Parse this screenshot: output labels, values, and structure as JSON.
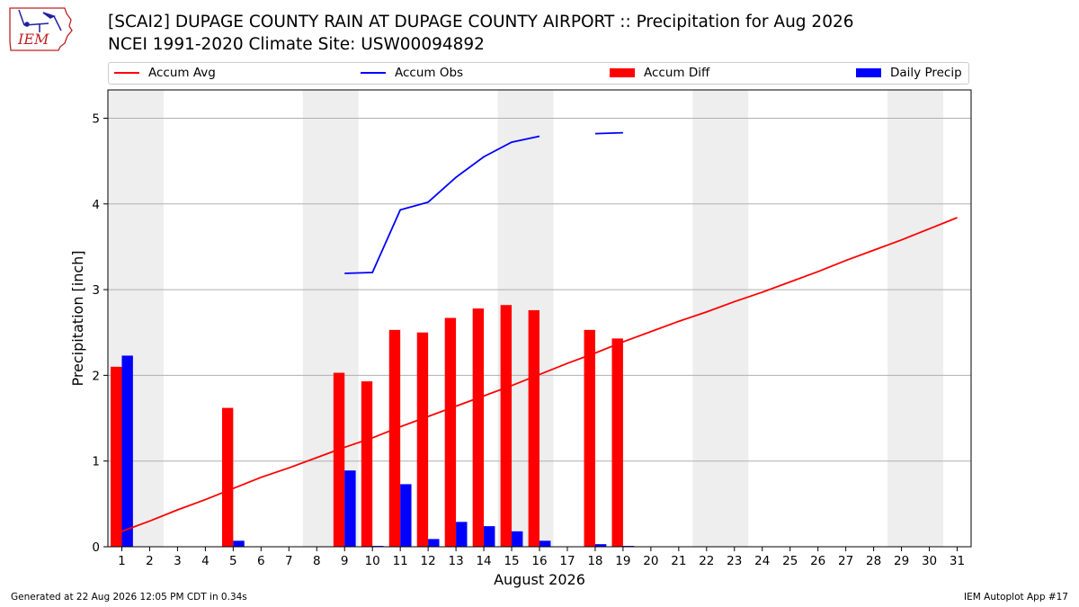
{
  "logo": {
    "text": "IEM",
    "icon": "iowa-state-outline-with-weather-instruments"
  },
  "title_line1": "[SCAI2] DUPAGE COUNTY RAIN AT DUPAGE COUNTY AIRPORT :: Precipitation for Aug 2026",
  "title_line2": "NCEI 1991-2020 Climate Site: USW00094892",
  "legend": [
    {
      "label": "Accum Avg",
      "kind": "line",
      "color": "#ff0000"
    },
    {
      "label": "Accum Obs",
      "kind": "line",
      "color": "#0000ff"
    },
    {
      "label": "Accum Diff",
      "kind": "box",
      "color": "#ff0000"
    },
    {
      "label": "Daily Precip",
      "kind": "box",
      "color": "#0000ff"
    }
  ],
  "footer_left": "Generated at 22 Aug 2026 12:05 PM CDT in 0.34s",
  "footer_right": "IEM Autoplot App #17",
  "chart_data": {
    "type": "bar",
    "xlabel": "August 2026",
    "ylabel": "Precipitation [inch]",
    "xlim": [
      0.5,
      31.5
    ],
    "ylim": [
      0,
      5.33
    ],
    "yticks": [
      0,
      1,
      2,
      3,
      4,
      5
    ],
    "xticks": [
      1,
      2,
      3,
      4,
      5,
      6,
      7,
      8,
      9,
      10,
      11,
      12,
      13,
      14,
      15,
      16,
      17,
      18,
      19,
      20,
      21,
      22,
      23,
      24,
      25,
      26,
      27,
      28,
      29,
      30,
      31
    ],
    "grid_y": true,
    "legend_position": "top",
    "weekend_shading": [
      [
        0.5,
        2.5
      ],
      [
        7.5,
        9.5
      ],
      [
        14.5,
        16.5
      ],
      [
        21.5,
        23.5
      ],
      [
        28.5,
        30.5
      ]
    ],
    "weekend_color": "#eeeeee",
    "accum_avg": {
      "name": "Accum Avg",
      "color": "#ff0000",
      "x": [
        1,
        2,
        3,
        4,
        5,
        6,
        7,
        8,
        9,
        10,
        11,
        12,
        13,
        14,
        15,
        16,
        17,
        18,
        19,
        20,
        21,
        22,
        23,
        24,
        25,
        26,
        27,
        28,
        29,
        30,
        31
      ],
      "y": [
        0.18,
        0.3,
        0.43,
        0.55,
        0.68,
        0.81,
        0.92,
        1.04,
        1.16,
        1.27,
        1.4,
        1.52,
        1.64,
        1.76,
        1.88,
        2.01,
        2.14,
        2.26,
        2.39,
        2.51,
        2.63,
        2.74,
        2.86,
        2.97,
        3.09,
        3.21,
        3.34,
        3.46,
        3.58,
        3.71,
        3.84
      ]
    },
    "accum_obs": {
      "name": "Accum Obs",
      "color": "#0000ff",
      "segments": [
        {
          "x": [
            9,
            10,
            11,
            12,
            13,
            14,
            15,
            16
          ],
          "y": [
            3.19,
            3.2,
            3.93,
            4.02,
            4.31,
            4.55,
            4.72,
            4.79
          ]
        },
        {
          "x": [
            18,
            19
          ],
          "y": [
            4.82,
            4.83
          ]
        }
      ]
    },
    "accum_diff": {
      "name": "Accum Diff",
      "color": "#ff0000",
      "x": [
        1,
        5,
        9,
        10,
        11,
        12,
        13,
        14,
        15,
        16,
        18,
        19
      ],
      "values": [
        2.1,
        1.62,
        2.03,
        1.93,
        2.53,
        2.5,
        2.67,
        2.78,
        2.82,
        2.76,
        2.53,
        2.43
      ]
    },
    "daily_precip": {
      "name": "Daily Precip",
      "color": "#0000ff",
      "x": [
        1,
        5,
        9,
        10,
        11,
        12,
        13,
        14,
        15,
        16,
        18,
        19
      ],
      "values": [
        2.23,
        0.07,
        0.89,
        0.01,
        0.73,
        0.09,
        0.29,
        0.24,
        0.18,
        0.07,
        0.03,
        0.01
      ]
    }
  }
}
